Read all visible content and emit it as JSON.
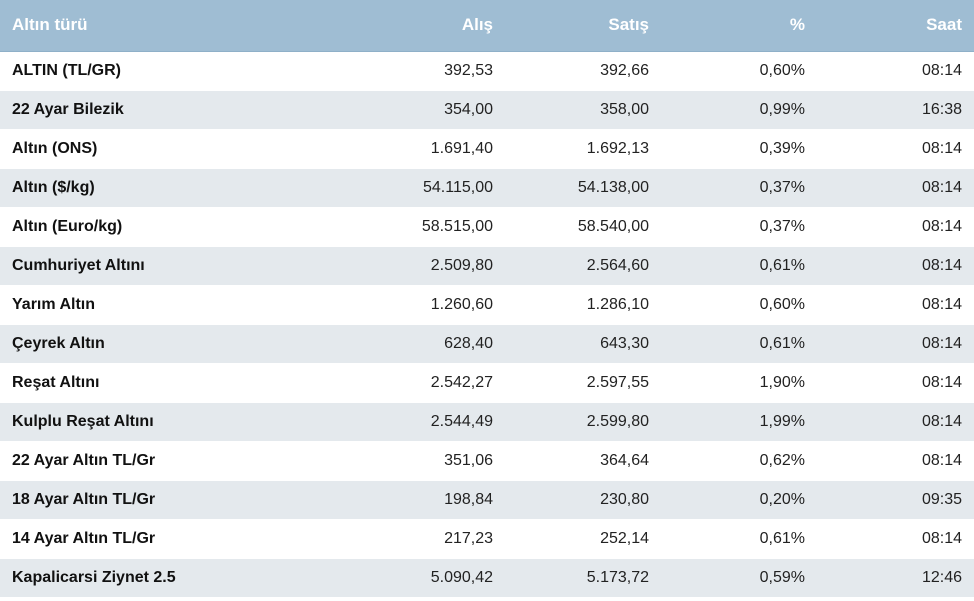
{
  "table": {
    "headers": {
      "name": "Altın türü",
      "buy": "Alış",
      "sell": "Satış",
      "change": "%",
      "time": "Saat"
    },
    "rows": [
      {
        "name": "ALTIN (TL/GR)",
        "buy": "392,53",
        "sell": "392,66",
        "change": "0,60%",
        "time": "08:14"
      },
      {
        "name": "22 Ayar Bilezik",
        "buy": "354,00",
        "sell": "358,00",
        "change": "0,99%",
        "time": "16:38"
      },
      {
        "name": "Altın (ONS)",
        "buy": "1.691,40",
        "sell": "1.692,13",
        "change": "0,39%",
        "time": "08:14"
      },
      {
        "name": "Altın ($/kg)",
        "buy": "54.115,00",
        "sell": "54.138,00",
        "change": "0,37%",
        "time": "08:14"
      },
      {
        "name": "Altın (Euro/kg)",
        "buy": "58.515,00",
        "sell": "58.540,00",
        "change": "0,37%",
        "time": "08:14"
      },
      {
        "name": "Cumhuriyet Altını",
        "buy": "2.509,80",
        "sell": "2.564,60",
        "change": "0,61%",
        "time": "08:14"
      },
      {
        "name": "Yarım Altın",
        "buy": "1.260,60",
        "sell": "1.286,10",
        "change": "0,60%",
        "time": "08:14"
      },
      {
        "name": "Çeyrek Altın",
        "buy": "628,40",
        "sell": "643,30",
        "change": "0,61%",
        "time": "08:14"
      },
      {
        "name": "Reşat Altını",
        "buy": "2.542,27",
        "sell": "2.597,55",
        "change": "1,90%",
        "time": "08:14"
      },
      {
        "name": "Kulplu Reşat Altını",
        "buy": "2.544,49",
        "sell": "2.599,80",
        "change": "1,99%",
        "time": "08:14"
      },
      {
        "name": "22 Ayar Altın TL/Gr",
        "buy": "351,06",
        "sell": "364,64",
        "change": "0,62%",
        "time": "08:14"
      },
      {
        "name": "18 Ayar Altın TL/Gr",
        "buy": "198,84",
        "sell": "230,80",
        "change": "0,20%",
        "time": "09:35"
      },
      {
        "name": "14 Ayar Altın TL/Gr",
        "buy": "217,23",
        "sell": "252,14",
        "change": "0,61%",
        "time": "08:14"
      },
      {
        "name": "Kapalicarsi Ziynet 2.5",
        "buy": "5.090,42",
        "sell": "5.173,72",
        "change": "0,59%",
        "time": "12:46"
      }
    ]
  },
  "colors": {
    "header_bg": "#9fbdd3",
    "row_alt_bg": "#e4e9ed"
  }
}
